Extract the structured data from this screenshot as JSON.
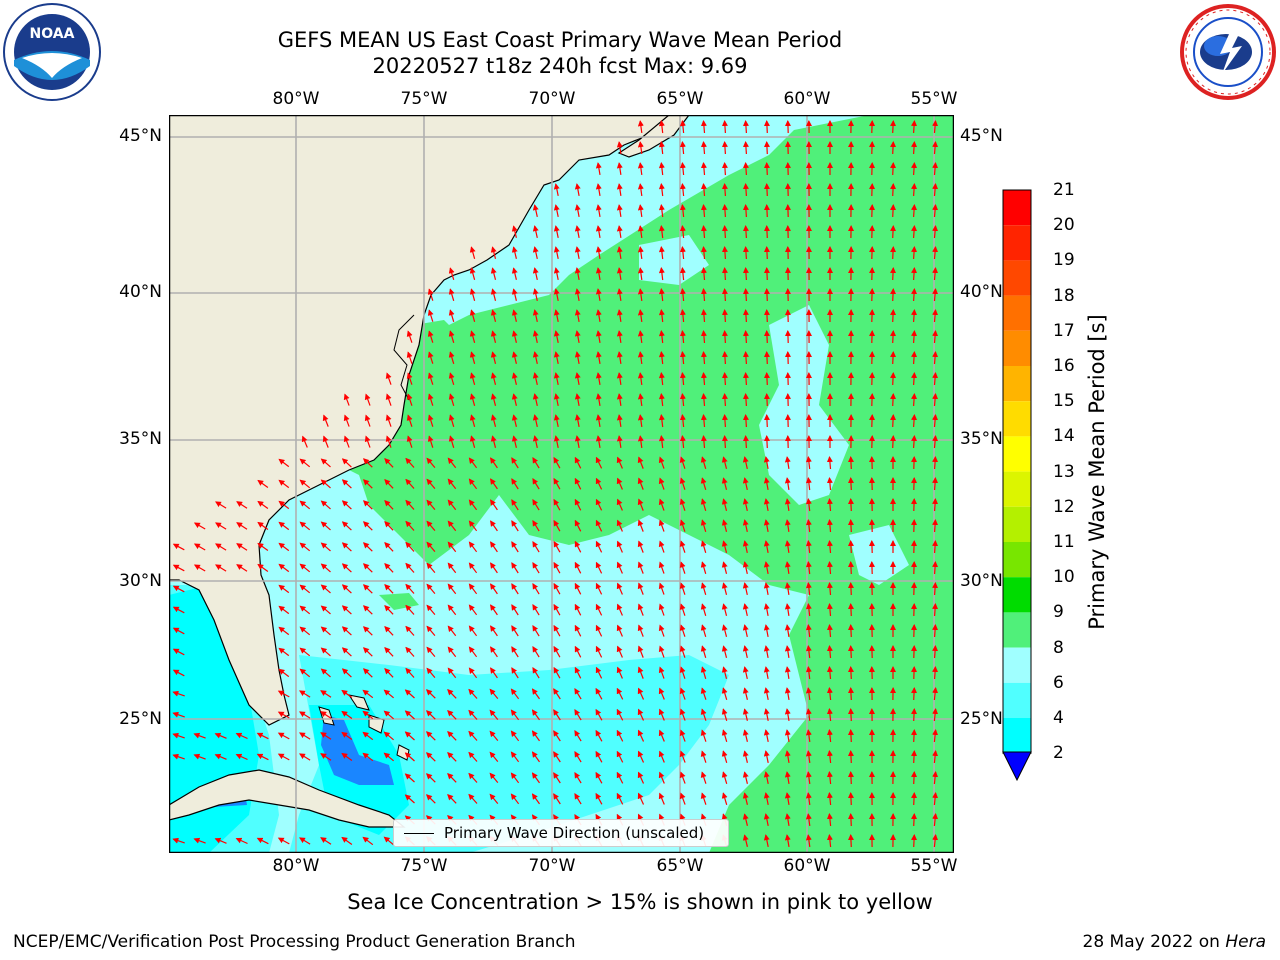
{
  "title_line1": "GEFS MEAN US East Coast Primary Wave Mean Period",
  "title_line2": "20220527 t18z 240h fcst   Max: 9.69",
  "longitude_labels": [
    "80°W",
    "75°W",
    "70°W",
    "65°W",
    "60°W",
    "55°W"
  ],
  "latitude_labels": [
    "45°N",
    "40°N",
    "35°N",
    "30°N",
    "25°N"
  ],
  "legend_label": "Primary Wave Direction (unscaled)",
  "colorbar": {
    "label": "Primary Wave Mean Period [s]",
    "ticks": [
      "21",
      "20",
      "19",
      "18",
      "17",
      "16",
      "15",
      "14",
      "13",
      "12",
      "11",
      "10",
      "9",
      "8",
      "6",
      "4",
      "2"
    ],
    "colors": [
      "#ff0000",
      "#ff2400",
      "#ff4800",
      "#ff7000",
      "#ff8c00",
      "#ffb400",
      "#ffdc00",
      "#ffff00",
      "#dcf500",
      "#b4f000",
      "#78e600",
      "#00dc00",
      "#50f07a",
      "#a0ffff",
      "#50ffff",
      "#00ffff",
      "#0070ff",
      "#0000ff"
    ],
    "min_arrow_color": "#0000ff"
  },
  "sea_ice_note": "Sea Ice Concentration > 15% is shown in pink to yellow",
  "footer_left": "NCEP/EMC/Verification Post Processing Product Generation Branch",
  "footer_date": "28 May 2022 on",
  "footer_host": "Hera",
  "logos": {
    "left": "NOAA",
    "right": "National Weather Service"
  },
  "map_colors": {
    "land": "#efeddc",
    "arrow": "#ff0000",
    "grid": "#b0b0b0",
    "sea_default": "#a0ffff"
  }
}
